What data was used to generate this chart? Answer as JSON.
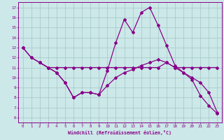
{
  "xlabel": "Windchill (Refroidissement éolien,°C)",
  "background_color": "#cce8e8",
  "grid_color": "#aacccc",
  "line_color": "#880088",
  "xlim": [
    -0.5,
    23.5
  ],
  "ylim": [
    5.5,
    17.5
  ],
  "yticks": [
    6,
    7,
    8,
    9,
    10,
    11,
    12,
    13,
    14,
    15,
    16,
    17
  ],
  "xticks": [
    0,
    1,
    2,
    3,
    4,
    5,
    6,
    7,
    8,
    9,
    10,
    11,
    12,
    13,
    14,
    15,
    16,
    17,
    18,
    19,
    20,
    21,
    22,
    23
  ],
  "line1_x": [
    0,
    1,
    2,
    3,
    4,
    5,
    6,
    7,
    8,
    9,
    10,
    11,
    12,
    13,
    14,
    15,
    16,
    17,
    18,
    19,
    20,
    21,
    22,
    23
  ],
  "line1_y": [
    13.0,
    12.0,
    11.5,
    11.0,
    11.0,
    11.0,
    11.0,
    11.0,
    11.0,
    11.0,
    11.0,
    11.0,
    11.0,
    11.0,
    11.0,
    11.0,
    11.0,
    11.5,
    11.0,
    11.0,
    11.0,
    11.0,
    11.0,
    11.0
  ],
  "line2_x": [
    0,
    1,
    2,
    3,
    4,
    5,
    6,
    7,
    8,
    9,
    10,
    11,
    12,
    13,
    14,
    15,
    16,
    17,
    18,
    19,
    20,
    21,
    22,
    23
  ],
  "line2_y": [
    13.0,
    12.0,
    11.5,
    11.0,
    10.5,
    9.5,
    8.0,
    8.5,
    8.5,
    8.3,
    10.7,
    13.5,
    15.8,
    14.5,
    16.5,
    17.0,
    15.2,
    13.2,
    11.2,
    10.5,
    9.8,
    8.2,
    7.2,
    6.4
  ],
  "line3_x": [
    2,
    3,
    4,
    5,
    6,
    7,
    8,
    9,
    10,
    11,
    12,
    13,
    14,
    15,
    16,
    17,
    18,
    19,
    20,
    21,
    22,
    23
  ],
  "line3_y": [
    11.5,
    11.0,
    10.5,
    9.5,
    8.0,
    8.5,
    8.5,
    8.3,
    9.2,
    10.0,
    10.5,
    10.8,
    11.2,
    11.5,
    11.8,
    11.5,
    11.0,
    10.5,
    10.0,
    9.5,
    8.5,
    6.5
  ]
}
